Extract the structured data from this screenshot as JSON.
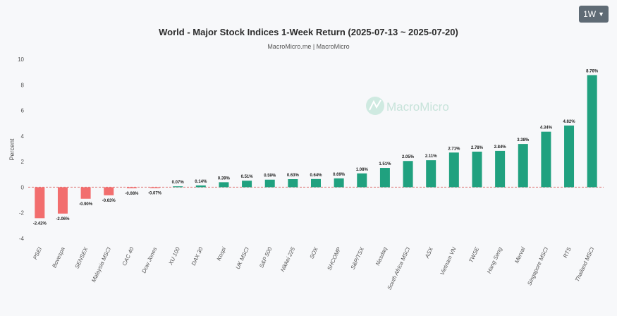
{
  "controls": {
    "period": "1W"
  },
  "watermark": {
    "text": "MacroMicro"
  },
  "chart_data": {
    "type": "bar",
    "title": "World - Major Stock Indices 1-Week Return (2025-07-13 ~ 2025-07-20)",
    "subtitle": "MacroMicro.me | MacroMicro",
    "ylabel": "Percent",
    "xlabel": "",
    "ylim": [
      -4,
      10
    ],
    "yticks": [
      -4,
      -2,
      0,
      2,
      4,
      6,
      8,
      10
    ],
    "grid": false,
    "colors": {
      "positive": "#20a17f",
      "negative": "#f26e6e",
      "zero_line": "#e07a7a"
    },
    "categories": [
      "PSEI",
      "Bovespa",
      "SENSEX",
      "Malaysia MSCI",
      "CAC 40",
      "Dow Jones",
      "XU 100",
      "DAX 30",
      "Kospi",
      "UK MSCI",
      "S&P 500",
      "Nikkei 225",
      "SOX",
      "SHCOMP",
      "S&P/TSX",
      "Nasdaq",
      "South Africa MSCI",
      "ASX",
      "Vietnam VN",
      "TWSE",
      "Hang Seng",
      "Merval",
      "Singapore MSCI",
      "RTS",
      "Thailand MSCI"
    ],
    "values": [
      -2.42,
      -2.06,
      -0.9,
      -0.63,
      -0.08,
      -0.07,
      0.07,
      0.14,
      0.39,
      0.51,
      0.59,
      0.63,
      0.64,
      0.69,
      1.08,
      1.51,
      2.05,
      2.11,
      2.71,
      2.78,
      2.84,
      3.38,
      4.34,
      4.82,
      8.76
    ],
    "value_labels": [
      "-2.42%",
      "-2.06%",
      "-0.90%",
      "-0.63%",
      "-0.08%",
      "-0.07%",
      "0.07%",
      "0.14%",
      "0.39%",
      "0.51%",
      "0.59%",
      "0.63%",
      "0.64%",
      "0.69%",
      "1.08%",
      "1.51%",
      "2.05%",
      "2.11%",
      "2.71%",
      "2.78%",
      "2.84%",
      "3.38%",
      "4.34%",
      "4.82%",
      "8.76%"
    ]
  }
}
